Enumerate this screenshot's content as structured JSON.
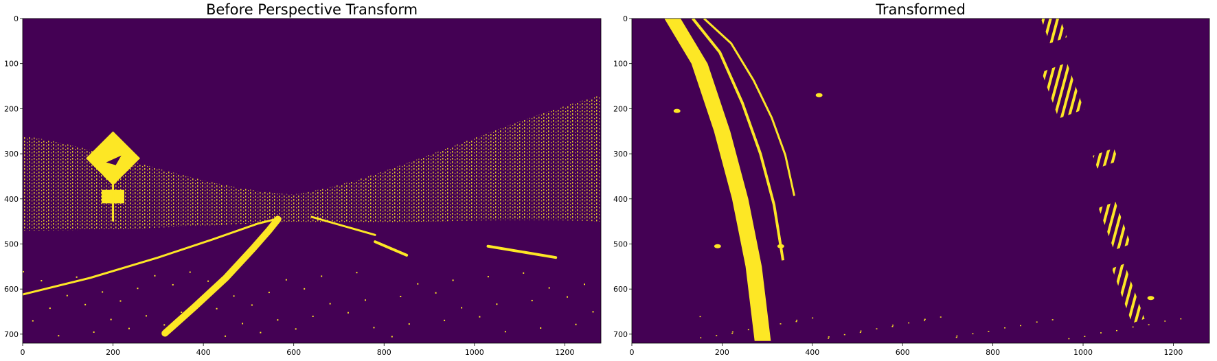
{
  "chart_data": [
    {
      "type": "heatmap",
      "title": "Before Perspective Transform",
      "xlim": [
        0,
        1280
      ],
      "ylim": [
        720,
        0
      ],
      "xticks": [
        0,
        200,
        400,
        600,
        800,
        1000,
        1200
      ],
      "yticks": [
        0,
        100,
        200,
        300,
        400,
        500,
        600,
        700
      ],
      "grid": false,
      "colors": {
        "background": "#440154",
        "foreground": "#fde725"
      },
      "description_features": {
        "lane_lines": [
          {
            "name": "left-edge-line",
            "points": [
              [
                0,
                612
              ],
              [
                150,
                575
              ],
              [
                300,
                530
              ],
              [
                420,
                490
              ],
              [
                520,
                455
              ],
              [
                560,
                445
              ]
            ],
            "width": 3
          },
          {
            "name": "center-solid-line",
            "points": [
              [
                315,
                698
              ],
              [
                380,
                640
              ],
              [
                450,
                575
              ],
              [
                510,
                510
              ],
              [
                545,
                470
              ],
              [
                565,
                445
              ]
            ],
            "width": 10
          },
          {
            "name": "right-dashed-line-a",
            "points": [
              [
                640,
                440
              ],
              [
                780,
                480
              ]
            ],
            "width": 3
          },
          {
            "name": "right-dashed-line-b",
            "points": [
              [
                780,
                495
              ],
              [
                850,
                525
              ]
            ],
            "width": 4
          },
          {
            "name": "right-lane-marker",
            "points": [
              [
                1030,
                505
              ],
              [
                1180,
                530
              ]
            ],
            "width": 4
          }
        ],
        "sign": {
          "center": [
            200,
            310
          ],
          "half_size": 60,
          "post": [
            [
              200,
              350
            ],
            [
              200,
              450
            ]
          ],
          "plate": [
            [
              175,
              380
            ],
            [
              225,
              410
            ]
          ]
        }
      }
    },
    {
      "type": "heatmap",
      "title": "Transformed",
      "xlim": [
        0,
        1280
      ],
      "ylim": [
        720,
        0
      ],
      "xticks": [
        0,
        200,
        400,
        600,
        800,
        1000,
        1200
      ],
      "yticks": [
        0,
        100,
        200,
        300,
        400,
        500,
        600,
        700
      ],
      "grid": false,
      "colors": {
        "background": "#440154",
        "foreground": "#fde725"
      },
      "description_features": {
        "left_lane": [
          [
            90,
            0
          ],
          [
            150,
            100
          ],
          [
            200,
            250
          ],
          [
            240,
            400
          ],
          [
            270,
            550
          ],
          [
            290,
            715
          ]
        ],
        "blobs": [
          {
            "center": [
              935,
              20
            ],
            "size": [
              40,
              60
            ]
          },
          {
            "center": [
              955,
              160
            ],
            "size": [
              60,
              110
            ]
          },
          {
            "center": [
              1050,
              310
            ],
            "size": [
              50,
              30
            ]
          },
          {
            "center": [
              1070,
              460
            ],
            "size": [
              40,
              100
            ]
          },
          {
            "center": [
              1100,
              610
            ],
            "size": [
              30,
              130
            ]
          }
        ]
      }
    }
  ]
}
